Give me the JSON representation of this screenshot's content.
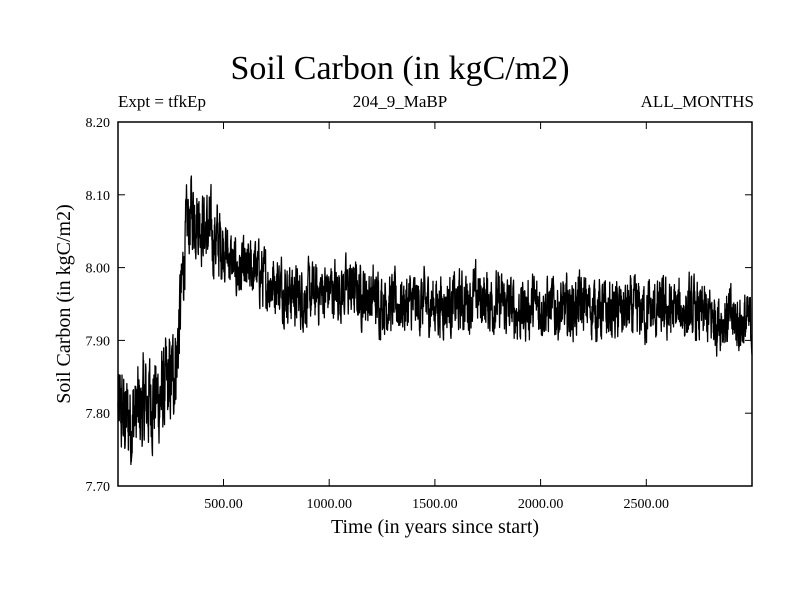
{
  "chart_data": {
    "type": "line",
    "title": "Soil Carbon (in kgC/m2)",
    "subtitle_left": "Expt = tfkEp",
    "subtitle_center": "204_9_MaBP",
    "subtitle_right": "ALL_MONTHS",
    "xlabel": "Time (in years since start)",
    "ylabel": "Soil Carbon (in kgC/m2)",
    "xlim": [
      1,
      3000
    ],
    "ylim": [
      7.7,
      8.2
    ],
    "x_ticks": [
      500,
      1000,
      1500,
      2000,
      2500
    ],
    "x_tick_labels": [
      "500.00",
      "1000.00",
      "1500.00",
      "2000.00",
      "2500.00"
    ],
    "y_ticks": [
      7.7,
      7.8,
      7.9,
      8.0,
      8.1,
      8.2
    ],
    "y_tick_labels": [
      "7.70",
      "7.80",
      "7.90",
      "8.00",
      "8.10",
      "8.20"
    ],
    "grid": false,
    "legend": "none",
    "series": [
      {
        "color": "#000000",
        "x": [
          1,
          50,
          100,
          150,
          200,
          250,
          280,
          300,
          320,
          350,
          380,
          400,
          450,
          500,
          550,
          600,
          650,
          700,
          750,
          800,
          850,
          900,
          1000,
          1100,
          1200,
          1300,
          1400,
          1500,
          1600,
          1700,
          1800,
          1900,
          2000,
          2100,
          2200,
          2300,
          2400,
          2500,
          2600,
          2700,
          2800,
          2900,
          3000
        ],
        "y": [
          7.8,
          7.79,
          7.8,
          7.82,
          7.82,
          7.84,
          7.88,
          7.96,
          8.04,
          8.08,
          8.07,
          8.06,
          8.04,
          8.03,
          8.0,
          7.99,
          8.0,
          7.98,
          7.98,
          7.97,
          7.96,
          7.96,
          7.97,
          7.97,
          7.96,
          7.95,
          7.95,
          7.95,
          7.95,
          7.96,
          7.95,
          7.94,
          7.95,
          7.94,
          7.95,
          7.94,
          7.94,
          7.94,
          7.94,
          7.94,
          7.93,
          7.93,
          7.92
        ]
      }
    ]
  }
}
